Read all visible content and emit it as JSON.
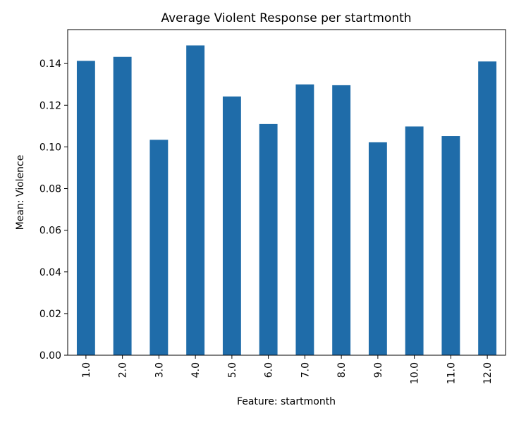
{
  "chart_data": {
    "type": "bar",
    "title": "Average Violent Response per startmonth",
    "xlabel": "Feature: startmonth",
    "ylabel": "Mean: Violence",
    "categories": [
      "1.0",
      "2.0",
      "3.0",
      "4.0",
      "5.0",
      "6.0",
      "7.0",
      "8.0",
      "9.0",
      "10.0",
      "11.0",
      "12.0"
    ],
    "values": [
      0.1413,
      0.1432,
      0.1034,
      0.1487,
      0.1242,
      0.111,
      0.13,
      0.1296,
      0.1022,
      0.1098,
      0.1052,
      0.141
    ],
    "ylim": [
      0,
      0.1563
    ],
    "yticks": [
      "0.00",
      "0.02",
      "0.04",
      "0.06",
      "0.08",
      "0.10",
      "0.12",
      "0.14"
    ],
    "ytick_values": [
      0,
      0.02,
      0.04,
      0.06,
      0.08,
      0.1,
      0.12,
      0.14
    ],
    "bar_color": "#1f6ca9",
    "grid": false,
    "legend": "none"
  }
}
